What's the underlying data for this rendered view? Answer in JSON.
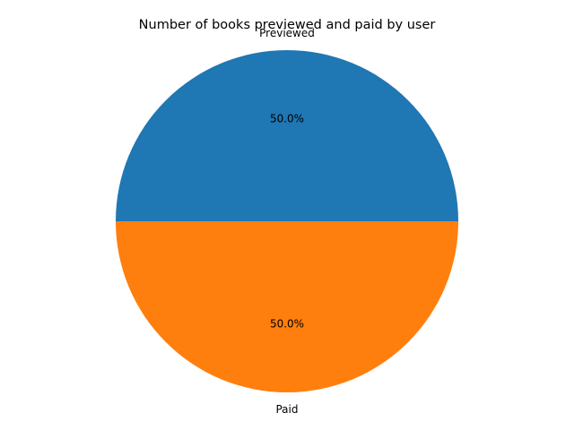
{
  "chart_data": {
    "type": "pie",
    "title": "Number of books previewed and paid by user",
    "categories": [
      "Previewed",
      "Paid"
    ],
    "values": [
      50,
      50
    ],
    "percent_labels": [
      "50.0%",
      "50.0%"
    ],
    "colors": [
      "#1f77b4",
      "#ff7f0e"
    ],
    "start_angle": 0,
    "direction": "counterclockwise"
  }
}
